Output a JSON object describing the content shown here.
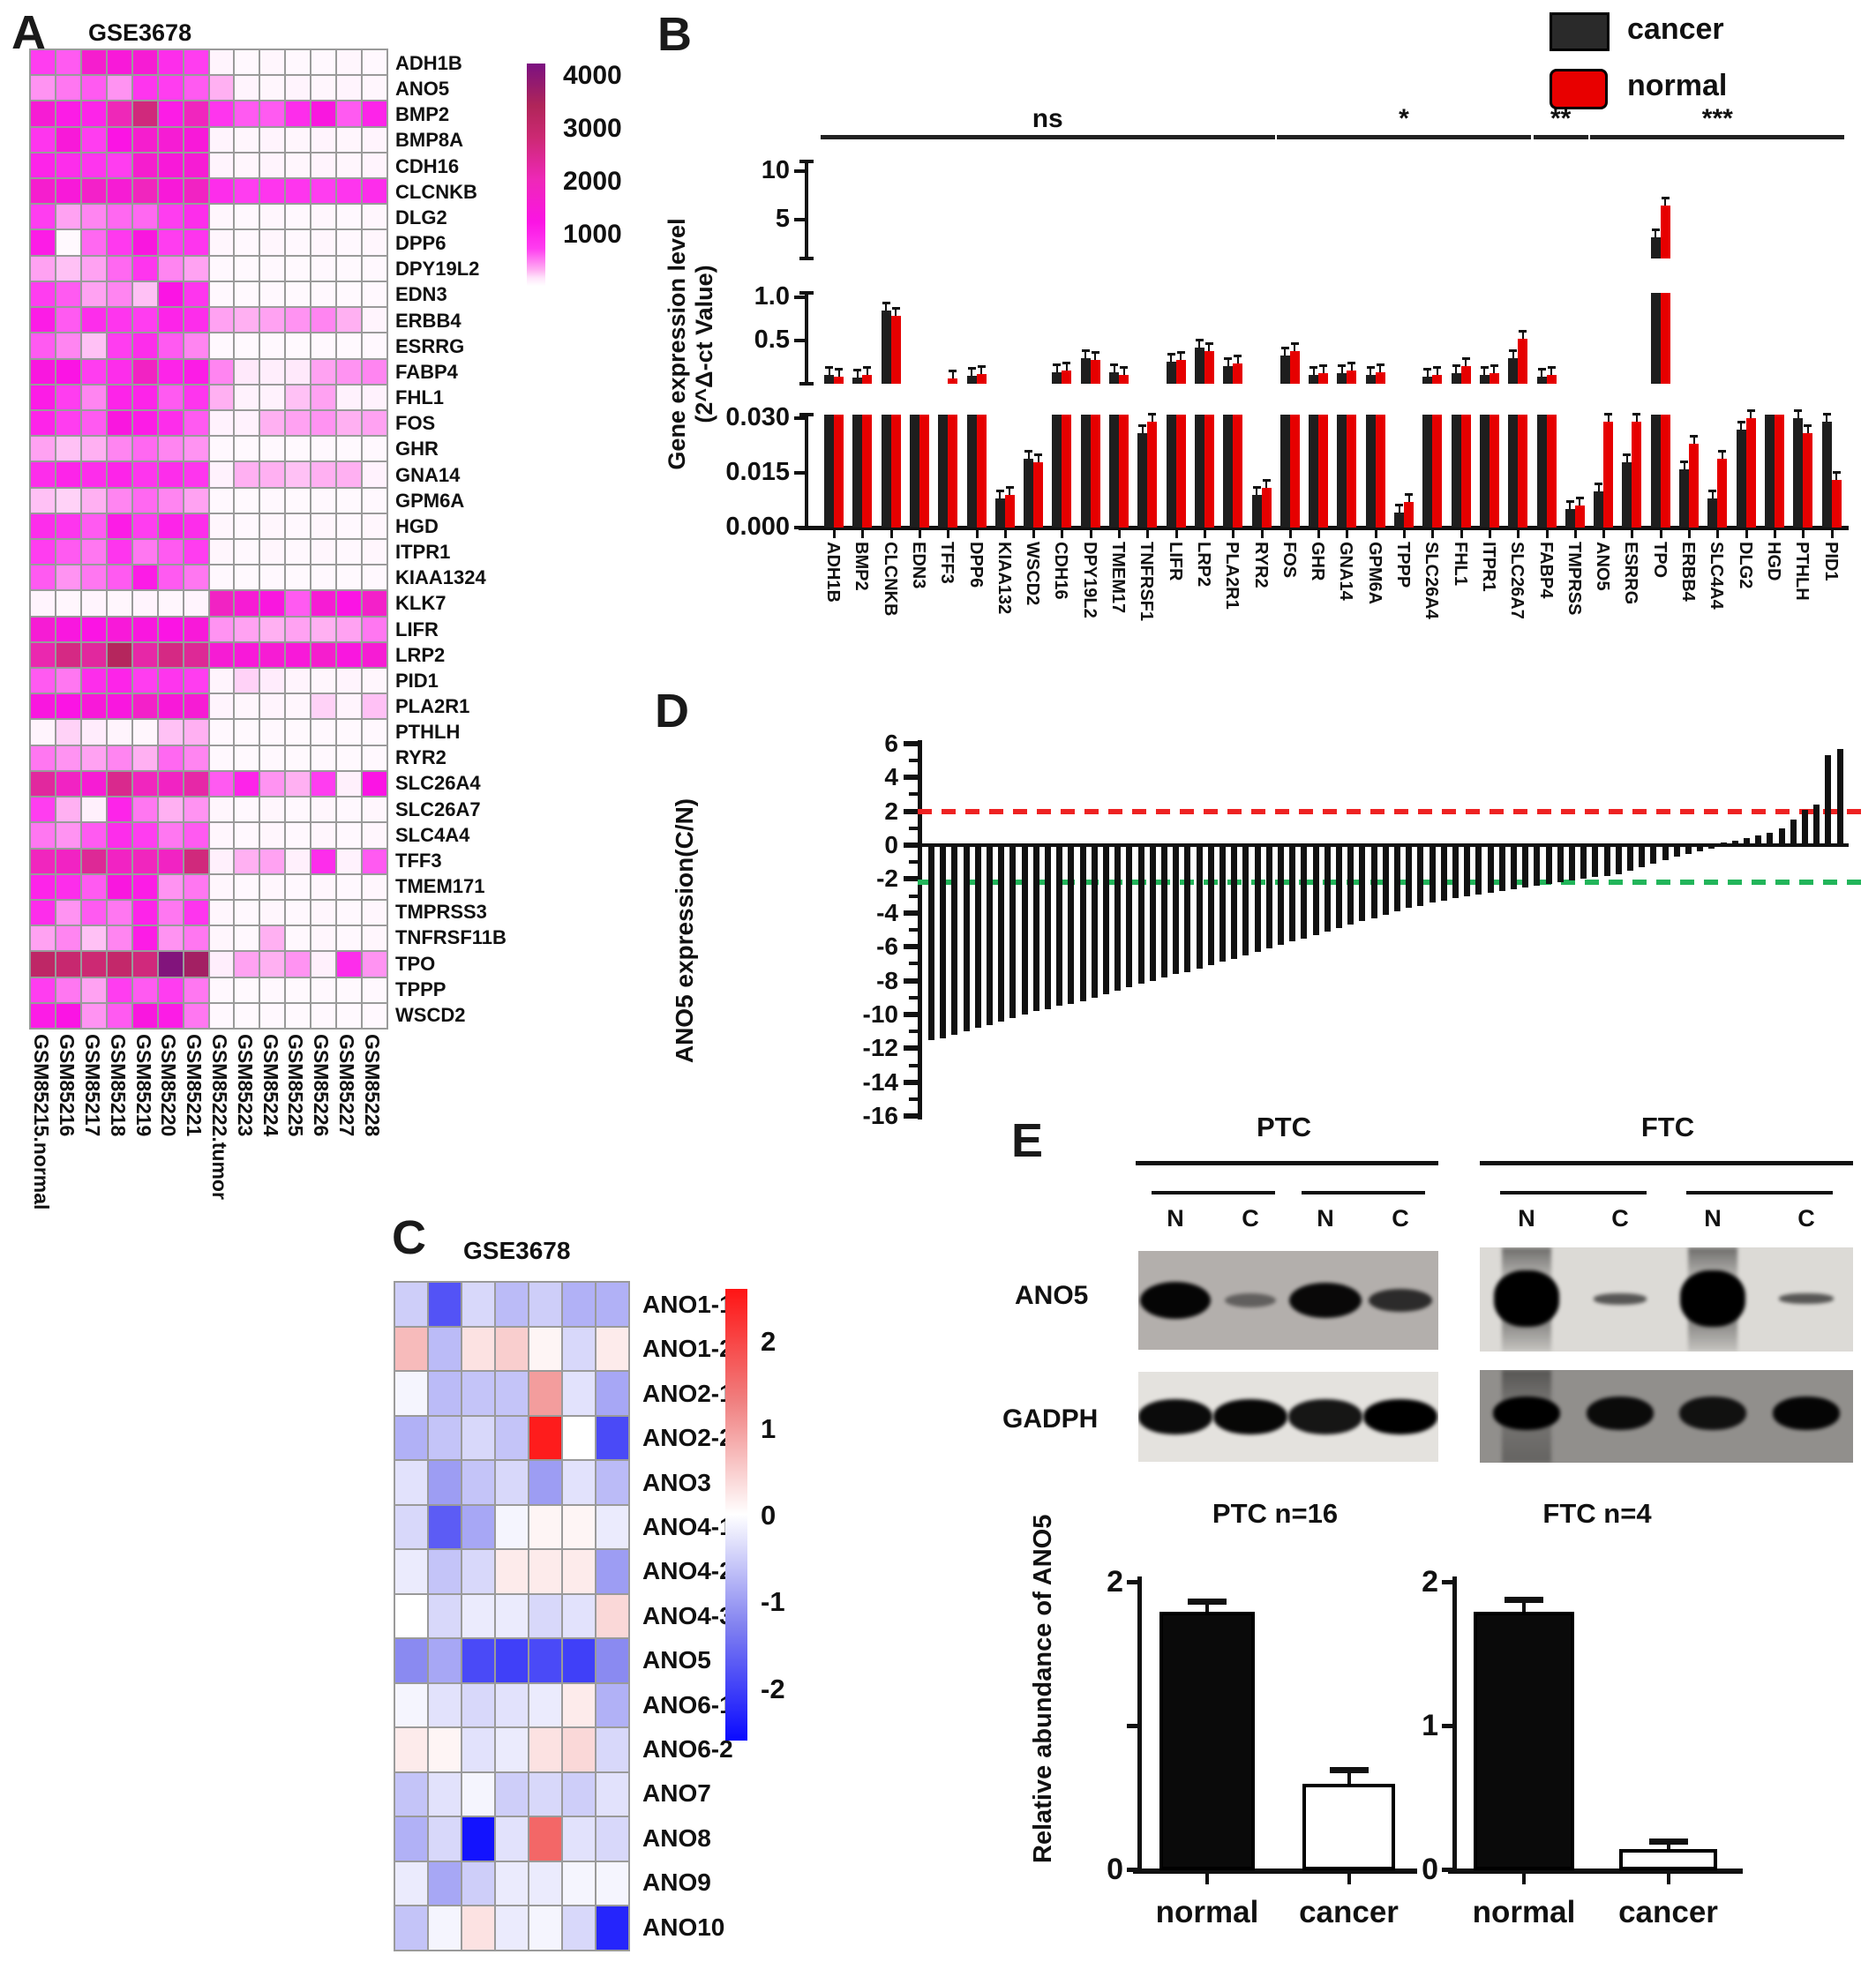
{
  "panels": {
    "a": "A",
    "b": "B",
    "c": "C",
    "d": "D",
    "e": "E"
  },
  "colors": {
    "cancer": "#1e1e1e",
    "normal": "#e60000",
    "red_dash": "#ee2222",
    "green_dash": "#22b55a",
    "bar_black": "#111111"
  },
  "chart_data": [
    {
      "id": "A",
      "type": "heatmap",
      "title": "GSE3678",
      "rows": [
        "ADH1B",
        "ANO5",
        "BMP2",
        "BMP8A",
        "CDH16",
        "CLCNKB",
        "DLG2",
        "DPP6",
        "DPY19L2",
        "EDN3",
        "ERBB4",
        "ESRRG",
        "FABP4",
        "FHL1",
        "FOS",
        "GHR",
        "GNA14",
        "GPM6A",
        "HGD",
        "ITPR1",
        "KIAA1324",
        "KLK7",
        "LIFR",
        "LRP2",
        "PID1",
        "PLA2R1",
        "PTHLH",
        "RYR2",
        "SLC26A4",
        "SLC26A7",
        "SLC4A4",
        "TFF3",
        "TMEM171",
        "TMPRSS3",
        "TNFRSF11B",
        "TPO",
        "TPPP",
        "WSCD2"
      ],
      "columns": [
        "GSM85215.normal",
        "GSM85216",
        "GSM85217",
        "GSM85218",
        "GSM85219",
        "GSM85220",
        "GSM85221",
        "GSM85222.tumor",
        "GSM85223",
        "GSM85224",
        "GSM85225",
        "GSM85226",
        "GSM85227",
        "GSM85228"
      ],
      "colorbar_ticks": [
        4000,
        3000,
        2000,
        1000
      ],
      "vmax": 4200,
      "values": [
        [
          700,
          600,
          1600,
          1400,
          1500,
          900,
          700,
          60,
          40,
          50,
          40,
          40,
          50,
          40
        ],
        [
          400,
          500,
          600,
          400,
          800,
          700,
          600,
          300,
          60,
          50,
          60,
          50,
          60,
          50
        ],
        [
          1500,
          1100,
          1000,
          2000,
          2700,
          1100,
          1900,
          800,
          600,
          600,
          900,
          1300,
          600,
          1000
        ],
        [
          800,
          1400,
          700,
          1200,
          1600,
          1500,
          1400,
          60,
          50,
          60,
          50,
          60,
          50,
          60
        ],
        [
          1000,
          900,
          800,
          700,
          1600,
          1400,
          1500,
          60,
          50,
          60,
          50,
          60,
          50,
          60
        ],
        [
          1600,
          1400,
          1700,
          1500,
          1900,
          1400,
          1800,
          900,
          700,
          800,
          800,
          700,
          800,
          900
        ],
        [
          700,
          350,
          450,
          550,
          550,
          700,
          900,
          50,
          40,
          50,
          40,
          50,
          40,
          50
        ],
        [
          1100,
          30,
          550,
          750,
          1300,
          700,
          800,
          50,
          40,
          50,
          40,
          50,
          40,
          50
        ],
        [
          350,
          250,
          350,
          550,
          800,
          450,
          350,
          40,
          30,
          40,
          30,
          40,
          30,
          40
        ],
        [
          700,
          600,
          350,
          450,
          250,
          1200,
          800,
          40,
          30,
          40,
          30,
          40,
          30,
          40
        ],
        [
          1100,
          600,
          900,
          800,
          700,
          1000,
          900,
          350,
          300,
          350,
          400,
          450,
          300,
          60
        ],
        [
          600,
          450,
          250,
          700,
          900,
          600,
          450,
          40,
          30,
          40,
          30,
          40,
          30,
          40
        ],
        [
          1300,
          1200,
          700,
          900,
          1800,
          1000,
          1100,
          450,
          120,
          90,
          120,
          350,
          400,
          450
        ],
        [
          1100,
          700,
          450,
          1000,
          1000,
          600,
          800,
          300,
          70,
          70,
          250,
          350,
          70,
          70
        ],
        [
          1000,
          700,
          600,
          1300,
          1100,
          900,
          600,
          70,
          70,
          300,
          350,
          400,
          300,
          350
        ],
        [
          350,
          250,
          300,
          450,
          550,
          450,
          400,
          40,
          30,
          40,
          30,
          40,
          30,
          40
        ],
        [
          900,
          1000,
          900,
          1000,
          800,
          900,
          800,
          70,
          300,
          300,
          250,
          300,
          300,
          70
        ],
        [
          250,
          200,
          300,
          450,
          550,
          450,
          350,
          40,
          30,
          40,
          30,
          40,
          30,
          40
        ],
        [
          900,
          800,
          600,
          1100,
          700,
          1000,
          900,
          50,
          40,
          50,
          40,
          50,
          40,
          50
        ],
        [
          700,
          600,
          500,
          800,
          500,
          600,
          700,
          50,
          40,
          50,
          40,
          50,
          40,
          50
        ],
        [
          600,
          400,
          500,
          600,
          1100,
          600,
          500,
          40,
          30,
          40,
          30,
          40,
          30,
          40
        ],
        [
          60,
          50,
          60,
          50,
          60,
          50,
          60,
          1800,
          1500,
          1300,
          600,
          1500,
          1200,
          1700
        ],
        [
          1500,
          1300,
          1200,
          1400,
          1300,
          1200,
          1400,
          400,
          350,
          300,
          350,
          300,
          350,
          500
        ],
        [
          2100,
          2600,
          2300,
          3300,
          2200,
          2600,
          2400,
          1500,
          1400,
          1500,
          1400,
          1600,
          1300,
          1500
        ],
        [
          600,
          500,
          900,
          1000,
          700,
          800,
          700,
          60,
          200,
          100,
          60,
          50,
          60,
          50
        ],
        [
          1300,
          1200,
          1400,
          1300,
          1700,
          1400,
          1500,
          60,
          50,
          60,
          50,
          200,
          60,
          250
        ],
        [
          60,
          200,
          100,
          60,
          50,
          250,
          300,
          40,
          30,
          40,
          30,
          40,
          30,
          40
        ],
        [
          500,
          400,
          350,
          450,
          300,
          550,
          450,
          40,
          30,
          40,
          30,
          40,
          30,
          40
        ],
        [
          2300,
          1800,
          1500,
          2500,
          1900,
          1800,
          2200,
          600,
          1000,
          400,
          300,
          700,
          80,
          1200
        ],
        [
          700,
          300,
          80,
          1000,
          500,
          300,
          400,
          50,
          40,
          50,
          40,
          50,
          40,
          50
        ],
        [
          500,
          400,
          600,
          900,
          700,
          500,
          600,
          50,
          40,
          50,
          40,
          50,
          40,
          50
        ],
        [
          1900,
          1800,
          2400,
          1800,
          1900,
          1800,
          2700,
          80,
          300,
          350,
          80,
          900,
          70,
          600
        ],
        [
          1000,
          900,
          600,
          1300,
          1100,
          400,
          500,
          50,
          40,
          50,
          40,
          50,
          40,
          50
        ],
        [
          900,
          400,
          600,
          500,
          1000,
          500,
          800,
          50,
          40,
          50,
          40,
          50,
          40,
          50
        ],
        [
          350,
          450,
          250,
          450,
          1100,
          400,
          500,
          50,
          40,
          300,
          40,
          50,
          40,
          50
        ],
        [
          3100,
          2900,
          2800,
          3000,
          2700,
          4100,
          3600,
          90,
          350,
          300,
          400,
          80,
          900,
          400
        ],
        [
          700,
          500,
          350,
          700,
          600,
          700,
          500,
          40,
          30,
          40,
          30,
          40,
          30,
          40
        ],
        [
          1100,
          1200,
          400,
          600,
          1300,
          1100,
          500,
          40,
          30,
          40,
          30,
          40,
          30,
          40
        ]
      ]
    },
    {
      "id": "B",
      "type": "bar",
      "ylabel_line1": "Gene expression level",
      "ylabel_line2": "(2^Δ-ct  Value)",
      "legend": [
        {
          "label": "cancer"
        },
        {
          "label": "normal"
        }
      ],
      "axis_segments": [
        {
          "ticks": [
            {
              "v": 10,
              "label": "10"
            },
            {
              "v": 5,
              "label": "5"
            }
          ]
        },
        {
          "ticks": [
            {
              "v": 1.0,
              "label": "1.0"
            },
            {
              "v": 0.5,
              "label": "0.5"
            }
          ]
        },
        {
          "ticks": [
            {
              "v": 0.03,
              "label": "0.030"
            },
            {
              "v": 0.015,
              "label": "0.015"
            },
            {
              "v": 0.0,
              "label": "0.000"
            }
          ]
        }
      ],
      "categories": [
        "ADH1B",
        "BMP2",
        "CLCNKB",
        "EDN3",
        "TFF3",
        "DPP6",
        "KIAA132",
        "WSCD2",
        "CDH16",
        "DPY19L2",
        "TMEM17",
        "TNFRSF1",
        "LIFR",
        "LRP2",
        "PLA2R1",
        "RYR2",
        "FOS",
        "GHR",
        "GNA14",
        "GPM6A",
        "TPPP",
        "SLC26A4",
        "FHL1",
        "ITPR1",
        "SLC26A7",
        "FABP4",
        "TMPRSS",
        "ANO5",
        "ESRRG",
        "TPO",
        "ERBB4",
        "SLC4A4",
        "DLG2",
        "HGD",
        "PTHLH",
        "PID1"
      ],
      "series": [
        {
          "name": "cancer",
          "values": [
            0.1,
            0.07,
            0.85,
            0.04,
            0.05,
            0.09,
            0.008,
            0.019,
            0.13,
            0.3,
            0.13,
            0.026,
            0.25,
            0.42,
            0.2,
            0.009,
            0.33,
            0.1,
            0.12,
            0.1,
            0.004,
            0.08,
            0.12,
            0.1,
            0.3,
            0.08,
            0.005,
            0.01,
            0.018,
            3.2,
            0.016,
            0.008,
            0.027,
            0.031,
            0.03,
            0.029
          ]
        },
        {
          "name": "normal",
          "values": [
            0.08,
            0.1,
            0.78,
            0.05,
            0.06,
            0.11,
            0.009,
            0.018,
            0.15,
            0.28,
            0.1,
            0.029,
            0.28,
            0.38,
            0.23,
            0.011,
            0.38,
            0.12,
            0.15,
            0.13,
            0.007,
            0.1,
            0.2,
            0.12,
            0.52,
            0.1,
            0.006,
            0.029,
            0.029,
            6.5,
            0.023,
            0.019,
            0.03,
            0.031,
            0.026,
            0.013
          ]
        }
      ],
      "significance": [
        {
          "label": "ns",
          "from": "ADH1B",
          "to": "RYR2"
        },
        {
          "label": "*",
          "from": "FOS",
          "to": "SLC26A7"
        },
        {
          "label": "**",
          "from": "FABP4",
          "to": "TMPRSS"
        },
        {
          "label": "***",
          "from": "ANO5",
          "to": "PID1"
        }
      ]
    },
    {
      "id": "C",
      "type": "heatmap",
      "title": "GSE3678",
      "rows": [
        "ANO1-1",
        "ANO1-2",
        "ANO2-1",
        "ANO2-2",
        "ANO3",
        "ANO4-1",
        "ANO4-2",
        "ANO4-3",
        "ANO5",
        "ANO6-1",
        "ANO6-2",
        "ANO7",
        "ANO8",
        "ANO9",
        "ANO10"
      ],
      "colorbar_ticks": [
        2,
        1,
        0,
        -1,
        -2
      ],
      "vrange": [
        -2.6,
        2.6
      ],
      "values": [
        [
          -0.5,
          -1.8,
          -0.4,
          -0.7,
          -0.5,
          -0.8,
          -0.8
        ],
        [
          0.7,
          -0.7,
          0.3,
          0.5,
          0.1,
          -0.4,
          0.2
        ],
        [
          -0.1,
          -0.7,
          -0.6,
          -0.6,
          1.0,
          -0.3,
          -0.9
        ],
        [
          -0.8,
          -0.6,
          -0.4,
          -0.6,
          2.5,
          0.0,
          -1.9
        ],
        [
          -0.3,
          -1.0,
          -0.6,
          -0.4,
          -1.0,
          -0.3,
          -0.7
        ],
        [
          -0.4,
          -1.7,
          -0.9,
          -0.1,
          0.1,
          0.1,
          -0.2
        ],
        [
          -0.2,
          -0.6,
          -0.4,
          0.2,
          0.2,
          0.2,
          -1.0
        ],
        [
          0.0,
          -0.4,
          -0.2,
          -0.2,
          -0.4,
          -0.3,
          0.4
        ],
        [
          -1.2,
          -0.9,
          -1.9,
          -2.0,
          -1.9,
          -2.0,
          -1.2
        ],
        [
          -0.1,
          -0.3,
          -0.4,
          -0.3,
          -0.2,
          0.2,
          -0.8
        ],
        [
          0.2,
          0.1,
          -0.3,
          -0.2,
          0.3,
          0.4,
          -0.4
        ],
        [
          -0.6,
          -0.3,
          -0.1,
          -0.5,
          -0.4,
          -0.5,
          -0.3
        ],
        [
          -0.8,
          -0.4,
          -2.5,
          -0.3,
          1.6,
          -0.3,
          -0.4
        ],
        [
          -0.2,
          -0.9,
          -0.5,
          -0.2,
          -0.2,
          -0.1,
          -0.1
        ],
        [
          -0.6,
          -0.1,
          0.3,
          -0.2,
          -0.1,
          -0.4,
          -2.3
        ]
      ]
    },
    {
      "id": "D",
      "type": "bar",
      "ylabel": "ANO5 expression(C/N)",
      "yticks": [
        6,
        4,
        2,
        0,
        -2,
        -4,
        -6,
        -8,
        -10,
        -12,
        -14,
        -16
      ],
      "ylim": [
        -16,
        6
      ],
      "red_dashed_y": 2,
      "green_dashed_y": -2.2,
      "values": [
        -11.5,
        -11.4,
        -11.2,
        -11.0,
        -10.8,
        -10.6,
        -10.4,
        -10.2,
        -10.0,
        -9.8,
        -9.7,
        -9.5,
        -9.4,
        -9.2,
        -9.0,
        -8.8,
        -8.6,
        -8.4,
        -8.2,
        -8.0,
        -7.8,
        -7.6,
        -7.5,
        -7.3,
        -7.1,
        -6.9,
        -6.7,
        -6.5,
        -6.3,
        -6.1,
        -5.9,
        -5.7,
        -5.5,
        -5.3,
        -5.1,
        -4.9,
        -4.7,
        -4.5,
        -4.3,
        -4.1,
        -3.9,
        -3.7,
        -3.6,
        -3.4,
        -3.3,
        -3.1,
        -3.0,
        -2.9,
        -2.8,
        -2.7,
        -2.6,
        -2.5,
        -2.4,
        -2.3,
        -2.2,
        -2.1,
        -2.0,
        -1.9,
        -1.8,
        -1.7,
        -1.5,
        -1.3,
        -1.1,
        -0.9,
        -0.7,
        -0.5,
        -0.35,
        -0.2,
        0.15,
        0.25,
        0.4,
        0.55,
        0.75,
        1.0,
        1.5,
        2.1,
        2.4,
        5.3,
        5.7
      ]
    },
    {
      "id": "E-PTC",
      "type": "bar",
      "title": "PTC  n=16",
      "ylabel": "Relative abundance of ANO5",
      "ylim": [
        0,
        2
      ],
      "yticks": [
        {
          "v": 2,
          "label": "2"
        },
        {
          "v": 1,
          "label": ""
        },
        {
          "v": 0,
          "label": "0"
        }
      ],
      "categories": [
        "normal",
        "cancer"
      ],
      "values": [
        1.8,
        0.6
      ],
      "errors": [
        0.06,
        0.09
      ]
    },
    {
      "id": "E-FTC",
      "type": "bar",
      "title": "FTC  n=4",
      "ylim": [
        0,
        2
      ],
      "yticks": [
        {
          "v": 2,
          "label": "2"
        },
        {
          "v": 1,
          "label": "1"
        },
        {
          "v": 0,
          "label": "0"
        }
      ],
      "categories": [
        "normal",
        "cancer"
      ],
      "values": [
        1.8,
        0.15
      ],
      "errors": [
        0.07,
        0.04
      ]
    }
  ],
  "panelE_blots": {
    "group_labels": [
      "PTC",
      "FTC"
    ],
    "lane_labels": [
      "N",
      "C",
      "N",
      "C"
    ],
    "row_labels": [
      "ANO5",
      "GADPH"
    ],
    "ptc_ano5": {
      "bands": [
        0.97,
        0.45,
        0.95,
        0.75
      ]
    },
    "ftc_ano5": {
      "bands": [
        1.0,
        0.55,
        1.0,
        0.5
      ]
    },
    "ptc_gadph": {
      "bands": [
        0.95,
        0.97,
        0.9,
        1.0
      ]
    },
    "ftc_gadph": {
      "bands": [
        1.0,
        0.92,
        0.88,
        0.96
      ]
    }
  }
}
